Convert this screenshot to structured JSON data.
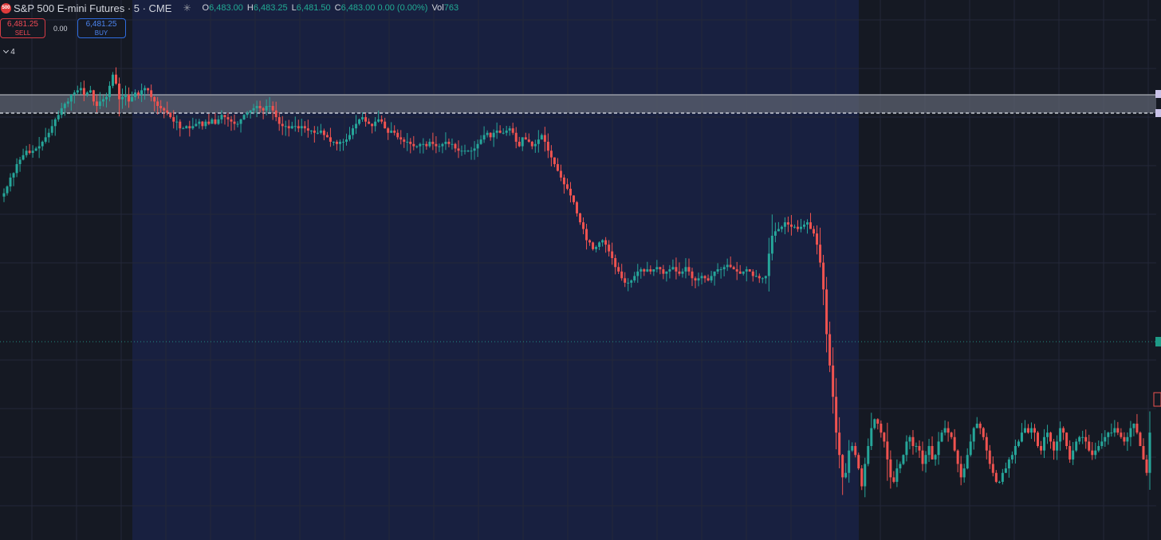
{
  "header": {
    "badge_text": "500",
    "symbol_title": "S&P 500 E-mini Futures · 5 · CME",
    "ohlc": {
      "o_key": "O",
      "o_val": "6,483.00",
      "h_key": "H",
      "h_val": "6,483.25",
      "l_key": "L",
      "l_val": "6,481.50",
      "c_key": "C",
      "c_val": "6,483.00 0.00 (0.00%)",
      "vol_key": "Vol",
      "vol_val": "763"
    }
  },
  "trade": {
    "sell_price": "6,481.25",
    "sell_label": "SELL",
    "spread": "0.00",
    "buy_price": "6,481.25",
    "buy_label": "BUY"
  },
  "indicators_toggle": {
    "count": "4"
  },
  "colors": {
    "up": "#26a69a",
    "down": "#ef5350",
    "background": "#151923",
    "session_band": "#182040",
    "zone_fill": "#5c6270",
    "price_line": "#26a69a"
  },
  "chart_data": {
    "type": "candlestick",
    "grid": true,
    "close": [
      6457.5,
      6459,
      6461,
      6462,
      6464,
      6465,
      6466,
      6467,
      6466.5,
      6467,
      6467.5,
      6468,
      6469,
      6470,
      6471,
      6472.5,
      6474,
      6475,
      6476.5,
      6477.5,
      6478,
      6479.5,
      6480,
      6480.5,
      6481,
      6479.5,
      6480,
      6480.5,
      6478,
      6477,
      6478,
      6478.5,
      6479,
      6481.5,
      6484,
      6482,
      6478.5,
      6479,
      6479.5,
      6478,
      6479,
      6480,
      6479.5,
      6480.5,
      6481,
      6480.5,
      6479,
      6478,
      6477,
      6476.5,
      6476,
      6475.5,
      6474.5,
      6473.5,
      6473.5,
      6472,
      6472,
      6472.5,
      6472,
      6472.5,
      6473,
      6473.5,
      6472.5,
      6473.5,
      6473,
      6474,
      6473,
      6474,
      6475,
      6474.5,
      6474,
      6473.5,
      6473,
      6473,
      6474,
      6475,
      6475.5,
      6476,
      6476.5,
      6477,
      6476.5,
      6476,
      6477,
      6477,
      6476,
      6474.5,
      6473,
      6472.5,
      6472.5,
      6472,
      6472.5,
      6472.5,
      6472,
      6472.5,
      6472,
      6471.5,
      6471.5,
      6471,
      6471,
      6471.5,
      6470.5,
      6470,
      6469,
      6469,
      6468.5,
      6469,
      6469,
      6469.5,
      6470.5,
      6472,
      6473,
      6474,
      6474.5,
      6473.5,
      6473,
      6472.5,
      6473.5,
      6474,
      6473.5,
      6472,
      6471,
      6471.5,
      6471,
      6470,
      6469.5,
      6469,
      6469,
      6468.5,
      6468,
      6468,
      6468.5,
      6468.5,
      6468,
      6469,
      6468.5,
      6468,
      6468,
      6468.5,
      6469,
      6468.5,
      6468.5,
      6467.5,
      6467,
      6467,
      6467,
      6467,
      6467,
      6467.5,
      6468.5,
      6469.5,
      6470.5,
      6471,
      6470,
      6471,
      6471.5,
      6471,
      6471,
      6471.5,
      6472,
      6471,
      6469,
      6468,
      6470,
      6469.5,
      6469,
      6468,
      6468.5,
      6469.5,
      6470.5,
      6469,
      6467,
      6465.5,
      6464,
      6462.5,
      6461,
      6459.5,
      6458.5,
      6457,
      6455.5,
      6453,
      6451,
      6449.5,
      6447,
      6446.5,
      6445,
      6445.5,
      6446.5,
      6447,
      6446,
      6444.5,
      6443,
      6441,
      6440,
      6438.5,
      6437.5,
      6437.5,
      6438,
      6439,
      6440,
      6440.5,
      6440,
      6440.5,
      6440,
      6440.5,
      6441,
      6440.5,
      6439.5,
      6440,
      6440.5,
      6441,
      6440,
      6439.5,
      6440,
      6441,
      6440,
      6438.5,
      6438,
      6438.5,
      6439,
      6438.5,
      6438,
      6439,
      6440,
      6440.5,
      6440.5,
      6441,
      6441.5,
      6441,
      6440.5,
      6440,
      6439.5,
      6440,
      6440.5,
      6440,
      6439,
      6439,
      6438.5,
      6438.5,
      6439,
      6444,
      6448,
      6449,
      6449.5,
      6450,
      6451,
      6450.5,
      6450,
      6450,
      6449.5,
      6450,
      6450.5,
      6451,
      6449.5,
      6448.5,
      6446,
      6442,
      6436,
      6426,
      6419,
      6412,
      6404,
      6399,
      6394,
      6395,
      6400,
      6401,
      6399,
      6396,
      6392,
      6397,
      6401,
      6405,
      6407,
      6406,
      6404,
      6402,
      6398,
      6394,
      6393,
      6396,
      6397,
      6399,
      6402,
      6403,
      6401,
      6401,
      6400,
      6397,
      6399,
      6401,
      6398,
      6399,
      6402,
      6404,
      6405,
      6404,
      6403,
      6400,
      6397,
      6394,
      6396,
      6399,
      6402,
      6405,
      6406,
      6405,
      6403,
      6400,
      6397,
      6395,
      6393,
      6393,
      6395,
      6396,
      6398,
      6399,
      6401,
      6402,
      6404,
      6405,
      6404,
      6405,
      6404,
      6401,
      6400,
      6403,
      6404,
      6402,
      6400,
      6402,
      6405,
      6404,
      6401,
      6398,
      6400,
      6402,
      6403,
      6403,
      6402,
      6400,
      6399,
      6400,
      6401,
      6402,
      6403,
      6404,
      6404,
      6405,
      6404,
      6403,
      6402,
      6403,
      6405,
      6406,
      6404,
      6401,
      6398,
      6395,
      6404
    ]
  }
}
